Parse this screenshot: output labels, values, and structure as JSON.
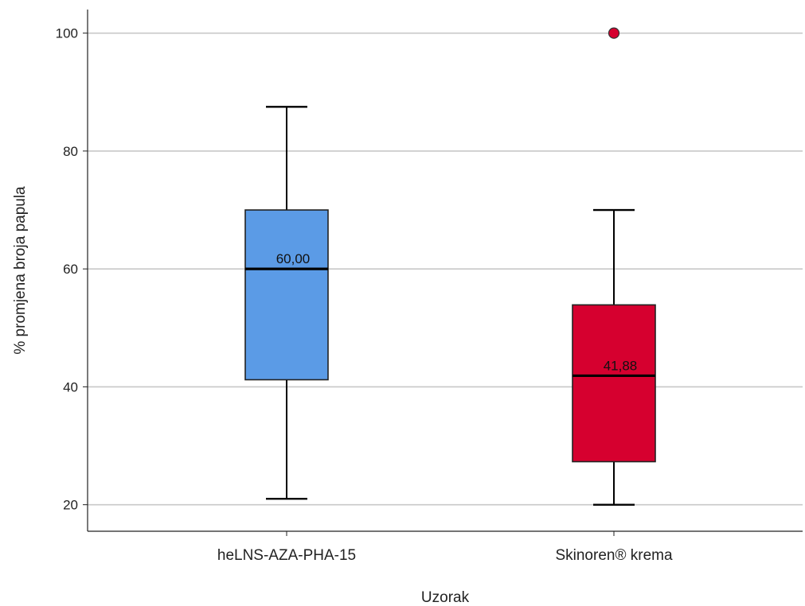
{
  "chart_data": {
    "type": "boxplot",
    "title": "",
    "xlabel": "Uzorak",
    "ylabel": "% promjena broja papula",
    "ylim": [
      15.5,
      104
    ],
    "yticks": [
      20,
      40,
      60,
      80,
      100
    ],
    "grid": "horizontal",
    "categories": [
      "heLNS-AZA-PHA-15",
      "Skinoren® krema"
    ],
    "boxes": [
      {
        "category": "heLNS-AZA-PHA-15",
        "whisker_low": 21,
        "q1": 41.2,
        "median": 60,
        "q3": 70,
        "whisker_high": 87.5,
        "median_label": "60,00",
        "outliers": [],
        "color": "#5b9be6"
      },
      {
        "category": "Skinoren® krema",
        "whisker_low": 20,
        "q1": 27.3,
        "median": 41.88,
        "q3": 53.9,
        "whisker_high": 70,
        "median_label": "41,88",
        "outliers": [
          100
        ],
        "color": "#d6002f"
      }
    ]
  }
}
